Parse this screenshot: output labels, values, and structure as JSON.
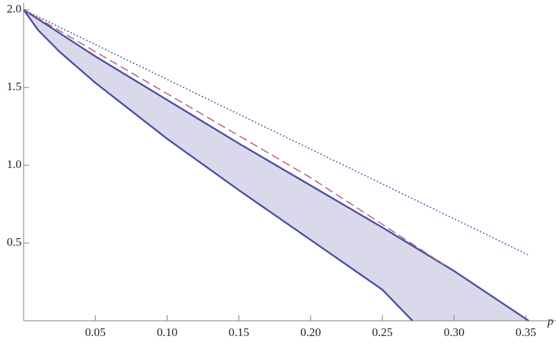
{
  "chart_data": {
    "type": "region",
    "x_label": "p",
    "xlim": [
      0,
      0.371
    ],
    "ylim": [
      0,
      2.0
    ],
    "xticks": [
      0.05,
      {
        "value": 0.1,
        "label": "0.10"
      },
      0.15,
      {
        "value": 0.2,
        "label": "0.20"
      },
      0.25,
      {
        "value": 0.3,
        "label": "0.30"
      },
      0.35
    ],
    "yticks": [
      0.5,
      {
        "value": 1,
        "label": "1.0"
      },
      1.5,
      {
        "value": 2,
        "label": "2.0"
      }
    ],
    "fill_color": "#d9d9eb",
    "series": [
      {
        "style": "solid",
        "color": "#4c4ca6",
        "x": [
          0,
          0.05,
          0.1,
          0.15,
          0.2,
          0.25,
          0.3,
          0.352
        ],
        "values": [
          2,
          1.7,
          1.42,
          1.14,
          0.87,
          0.6,
          0.32,
          0
        ]
      },
      {
        "style": "solid",
        "color": "#4c4ca6",
        "x": [
          0,
          0.01,
          0.025,
          0.05,
          0.1,
          0.15,
          0.2,
          0.25,
          0.271
        ],
        "values": [
          2,
          1.87,
          1.73,
          1.53,
          1.17,
          0.84,
          0.52,
          0.2,
          0
        ]
      },
      {
        "style": "dashed",
        "color": "#b5607a",
        "x": [
          0,
          0.05,
          0.1,
          0.15,
          0.2,
          0.25,
          0.293
        ],
        "values": [
          2,
          1.73,
          1.46,
          1.19,
          0.92,
          0.62,
          0.36
        ]
      },
      {
        "style": "dotted",
        "color": "#4c4ca6",
        "x": [
          0,
          0.3525
        ],
        "values": [
          2,
          0.42
        ]
      }
    ]
  }
}
